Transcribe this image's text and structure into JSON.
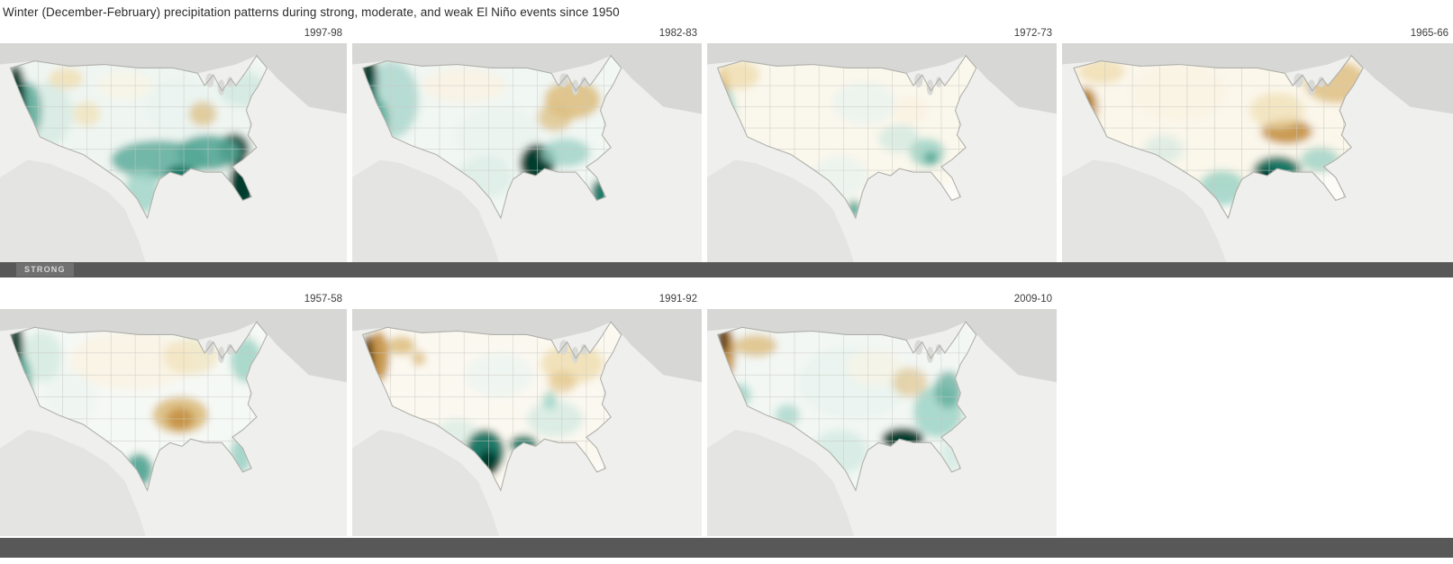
{
  "title": "Winter (December-February) precipitation patterns during strong, moderate, and weak El Niño events since 1950",
  "colors": {
    "wet": [
      "#eaf4f0",
      "#cfe8e0",
      "#9ed3c6",
      "#55a796",
      "#117260",
      "#013c2f"
    ],
    "dry": [
      "#faf3e2",
      "#f0dfb2",
      "#ddbd7d",
      "#c49041",
      "#9a6313",
      "#5f3c05"
    ],
    "band_bar": "#585858",
    "band_chip": "#707070",
    "title_text": "#2b2b2b"
  },
  "rows": [
    {
      "band_label": "STRONG",
      "panels": [
        {
          "year": "1997-98",
          "regions": [
            [
              40,
              22,
              45,
              28,
              "w",
              1,
              0.7
            ],
            [
              52,
              18,
              10,
              8,
              "w",
              1,
              0.8
            ],
            [
              14,
              20,
              7,
              9,
              "w",
              2,
              0.6
            ],
            [
              8,
              19,
              4,
              8,
              "w",
              4,
              0.8
            ],
            [
              4.5,
              17,
              3,
              11,
              "w",
              6,
              1
            ],
            [
              70,
              40,
              4,
              6.5,
              "w",
              6,
              1
            ],
            [
              67.5,
              30,
              4.5,
              4.5,
              "w",
              6,
              0.85
            ],
            [
              60,
              31,
              9,
              5,
              "w",
              4,
              0.9
            ],
            [
              46,
              33,
              14,
              5.5,
              "w",
              4,
              0.8
            ],
            [
              52,
              37,
              4,
              2.5,
              "w",
              5,
              0.9
            ],
            [
              41,
              42,
              5,
              6,
              "w",
              3,
              0.8
            ],
            [
              70,
              13,
              7,
              5,
              "w",
              2,
              0.8
            ],
            [
              19,
              10,
              5,
              3,
              "d",
              2,
              0.8
            ],
            [
              25,
              20,
              4,
              3.5,
              "d",
              2,
              0.7
            ],
            [
              58.5,
              20,
              4,
              3.5,
              "d",
              3,
              0.7
            ],
            [
              36,
              12,
              8,
              4,
              "d",
              1,
              0.7
            ]
          ]
        },
        {
          "year": "1982-83",
          "regions": [
            [
              40,
              22,
              45,
              28,
              "w",
              1,
              0.6
            ],
            [
              11,
              16,
              8,
              11,
              "w",
              3,
              0.7
            ],
            [
              4.5,
              11,
              2.5,
              9,
              "w",
              6,
              1
            ],
            [
              5,
              18,
              2.5,
              7,
              "w",
              5,
              0.9
            ],
            [
              7.5,
              22,
              3,
              6,
              "w",
              4,
              0.8
            ],
            [
              32,
              12,
              12,
              5,
              "d",
              1,
              0.8
            ],
            [
              63,
              16,
              8,
              5.5,
              "d",
              3,
              0.85
            ],
            [
              58,
              21,
              5,
              4,
              "d",
              3,
              0.7
            ],
            [
              42,
              26,
              12,
              8,
              "w",
              1,
              0.7
            ],
            [
              38,
              38,
              8,
              6,
              "w",
              2,
              0.5
            ],
            [
              53,
              34,
              5,
              5.5,
              "w",
              6,
              1
            ],
            [
              61,
              31,
              7,
              4,
              "w",
              3,
              0.8
            ],
            [
              71,
              42.5,
              2.5,
              4,
              "w",
              5,
              0.95
            ]
          ]
        },
        {
          "year": "1972-73",
          "regions": [
            [
              40,
              20,
              45,
              26,
              "d",
              1,
              0.5
            ],
            [
              4.5,
              12,
              1.8,
              5.5,
              "d",
              4,
              0.95
            ],
            [
              9,
              9,
              6,
              4,
              "d",
              2,
              0.8
            ],
            [
              5.5,
              20,
              2.5,
              7,
              "w",
              3,
              0.9
            ],
            [
              45,
              17,
              9,
              6,
              "w",
              1,
              0.8
            ],
            [
              55,
              27,
              6,
              4,
              "w",
              2,
              0.7
            ],
            [
              63,
              31,
              5,
              4,
              "w",
              3,
              0.85
            ],
            [
              64,
              32.5,
              2,
              2,
              "w",
              4,
              0.9
            ],
            [
              38,
              38,
              8,
              6,
              "w",
              1,
              0.8
            ],
            [
              42,
              47,
              2,
              2.5,
              "w",
              4,
              0.9
            ],
            [
              58,
              19,
              5,
              4,
              "d",
              1,
              0.8
            ]
          ]
        },
        {
          "year": "1965-66",
          "regions": [
            [
              40,
              18,
              45,
              24,
              "d",
              1,
              0.6
            ],
            [
              6,
              18,
              3,
              5.5,
              "d",
              4,
              0.95
            ],
            [
              5.5,
              17,
              1.8,
              3,
              "d",
              5,
              0.9
            ],
            [
              10,
              8,
              6,
              3.5,
              "d",
              2,
              0.8
            ],
            [
              70,
              11,
              8,
              6,
              "d",
              3,
              0.8
            ],
            [
              57.5,
              25,
              6.5,
              3.5,
              "d",
              4,
              0.9
            ],
            [
              55,
              19,
              7,
              5,
              "d",
              2,
              0.7
            ],
            [
              30,
              14,
              12,
              8,
              "d",
              1,
              0.7
            ],
            [
              26,
              30,
              5,
              4,
              "w",
              2,
              0.6
            ],
            [
              55,
              36,
              6,
              4,
              "w",
              5,
              0.95
            ],
            [
              52.5,
              38,
              3,
              2.5,
              "w",
              6,
              1
            ],
            [
              41,
              41,
              6,
              5,
              "w",
              3,
              0.85
            ],
            [
              66,
              33,
              5,
              3.5,
              "w",
              3,
              0.8
            ]
          ]
        }
      ]
    },
    {
      "band_label": "",
      "panels": [
        {
          "year": "1957-58",
          "regions": [
            [
              40,
              22,
              45,
              28,
              "w",
              1,
              0.4
            ],
            [
              20,
              24,
              8,
              8,
              "w",
              1,
              0.5
            ],
            [
              12,
              13,
              6,
              7,
              "w",
              2,
              0.7
            ],
            [
              4.5,
              13,
              2.2,
              11,
              "w",
              6,
              1
            ],
            [
              6.5,
              21,
              2.5,
              8,
              "w",
              4,
              0.9
            ],
            [
              38,
              14,
              18,
              8,
              "d",
              1,
              0.8
            ],
            [
              55,
              13,
              8,
              5,
              "d",
              2,
              0.6
            ],
            [
              52,
              29,
              8,
              5,
              "d",
              3,
              0.9
            ],
            [
              52,
              30,
              4,
              3,
              "d",
              4,
              0.9
            ],
            [
              40,
              44,
              4,
              4.5,
              "w",
              4,
              0.95
            ],
            [
              69.5,
              40,
              3,
              5,
              "w",
              3,
              0.9
            ],
            [
              71,
              14,
              4.5,
              6,
              "w",
              3,
              0.85
            ]
          ]
        },
        {
          "year": "1991-92",
          "regions": [
            [
              40,
              22,
              45,
              28,
              "d",
              1,
              0.35
            ],
            [
              7.5,
              13,
              3,
              7,
              "d",
              4,
              0.9
            ],
            [
              4.5,
              14,
              1.8,
              7,
              "d",
              6,
              0.95
            ],
            [
              14,
              10,
              4,
              2.5,
              "d",
              3,
              0.85
            ],
            [
              19,
              13.5,
              2,
              2,
              "d",
              3,
              0.8
            ],
            [
              63,
              15,
              9,
              5.5,
              "d",
              2,
              0.85
            ],
            [
              60,
              20,
              4,
              3,
              "d",
              3,
              0.6
            ],
            [
              42,
              18,
              10,
              6,
              "w",
              1,
              0.7
            ],
            [
              30,
              34,
              6,
              4,
              "w",
              2,
              0.6
            ],
            [
              38,
              39,
              5.5,
              6,
              "w",
              5,
              0.95
            ],
            [
              39,
              42,
              3,
              3.5,
              "w",
              6,
              1
            ],
            [
              49,
              37,
              4,
              2.5,
              "w",
              5,
              0.9
            ],
            [
              58,
              30,
              8,
              5,
              "w",
              2,
              0.7
            ],
            [
              56.5,
              25,
              2,
              2.5,
              "w",
              3,
              0.8
            ]
          ]
        },
        {
          "year": "2009-10",
          "regions": [
            [
              40,
              22,
              45,
              28,
              "w",
              1,
              0.5
            ],
            [
              42,
              20,
              16,
              10,
              "w",
              1,
              0.8
            ],
            [
              5.5,
              12,
              2.5,
              7,
              "d",
              4,
              0.9
            ],
            [
              4.5,
              8.5,
              1.8,
              4,
              "d",
              6,
              0.95
            ],
            [
              14,
              10,
              6,
              3,
              "d",
              3,
              0.8
            ],
            [
              48,
              16,
              8,
              5,
              "d",
              1,
              0.6
            ],
            [
              58,
              20,
              5,
              4,
              "d",
              3,
              0.6
            ],
            [
              9.5,
              23.5,
              3,
              3,
              "w",
              3,
              0.85
            ],
            [
              23,
              29,
              3.5,
              3,
              "w",
              3,
              0.7
            ],
            [
              38,
              39,
              8,
              6,
              "w",
              2,
              0.7
            ],
            [
              56,
              35.5,
              6,
              3,
              "w",
              6,
              1
            ],
            [
              66,
              28,
              7,
              7,
              "w",
              3,
              0.85
            ],
            [
              69,
              22,
              4,
              5,
              "w",
              4,
              0.7
            ],
            [
              70,
              40,
              3,
              5,
              "w",
              2,
              0.7
            ]
          ]
        }
      ]
    }
  ],
  "chart_data": {
    "type": "choropleth_small_multiples",
    "title": "Winter (December-February) precipitation patterns during strong, moderate, and weak El Niño events since 1950",
    "groups": [
      {
        "label": "STRONG",
        "years": [
          "1997-98",
          "1982-83",
          "1972-73",
          "1965-66"
        ]
      },
      {
        "label": "",
        "years": [
          "1957-58",
          "1991-92",
          "2009-10"
        ]
      }
    ],
    "encoding": {
      "wet_anomaly_color": "teal-green scale (dark = strongly wetter than average)",
      "dry_anomaly_color": "tan-brown scale (dark = strongly drier than average)"
    },
    "notable_patterns": {
      "1997-98": "very wet California coast, Florida and Gulf/Southeast coast; slightly dry Ohio Valley and Montana",
      "1982-83": "very wet Pacific Northwest coast and lower Mississippi delta; dry Ohio Valley into New York/Pennsylvania",
      "1972-73": "dry Oregon coast; modestly wet California coast, Georgia and south Texas tip",
      "1965-66": "dry central California and Tennessee Valley and Northeast; very wet central Gulf coast",
      "1957-58": "very wet Pacific Northwest coast, wet Northeast, Florida, south Texas; dry mid-South (Arkansas/Mississippi/Alabama)",
      "1991-92": "very dry Oregon coast and inland Northwest; very wet central/south Texas and Gulf coast",
      "2009-10": "very dry Washington coast; very wet central Gulf coast and Southeast/mid-Atlantic"
    }
  }
}
